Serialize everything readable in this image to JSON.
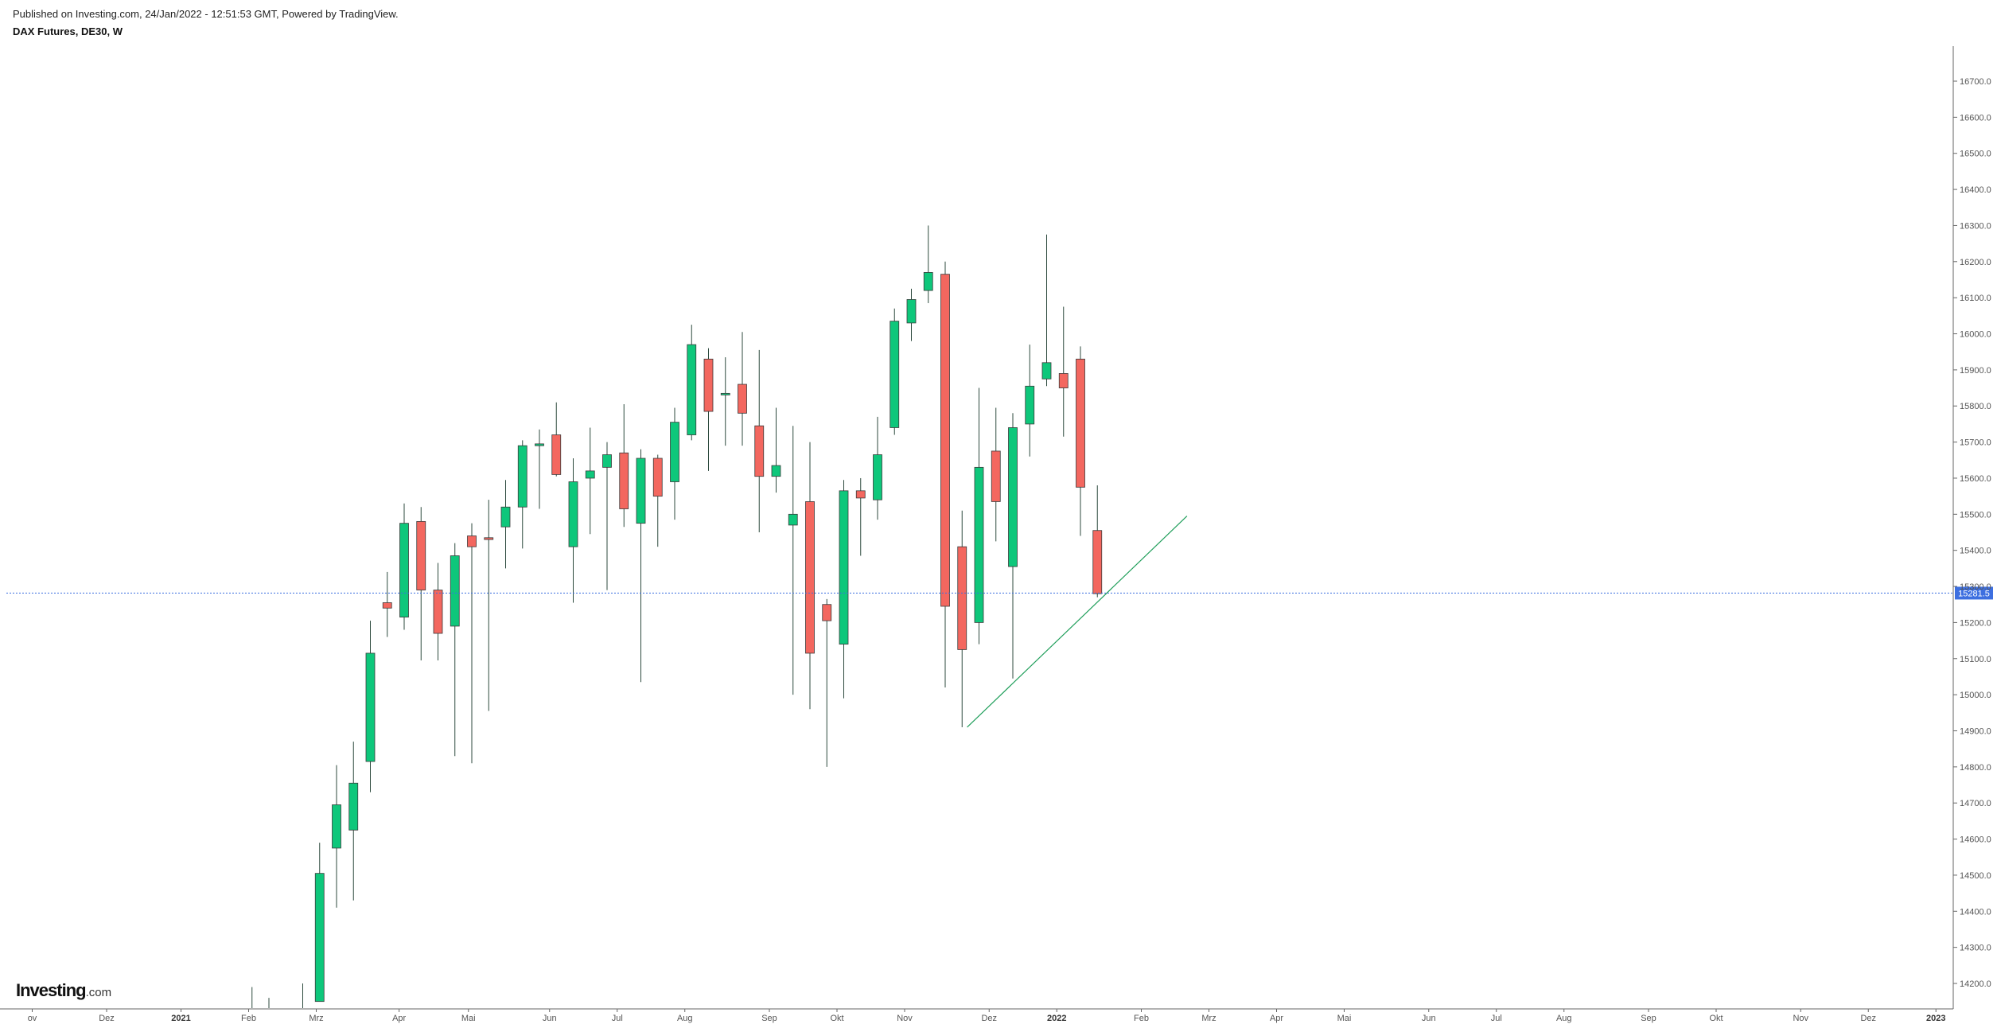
{
  "header": {
    "publisher": "Published on Investing.com, 24/Jan/2022 - 12:51:53 GMT, Powered by TradingView.",
    "title": "DAX Futures, DE30, W"
  },
  "logo": {
    "text": "Investing",
    "suffix": ".com"
  },
  "colors": {
    "up": "#0ec77b",
    "down": "#f3675f",
    "wick": "#2d4a3e",
    "price_line": "#3d6fe0",
    "trendline": "#1f9e5a",
    "axis": "#666666"
  },
  "chart_data": {
    "type": "candlestick",
    "ylim": [
      14150,
      16800
    ],
    "y_ticks": [
      14200,
      14300,
      14400,
      14500,
      14600,
      14700,
      14800,
      14900,
      15000,
      15100,
      15200,
      15300,
      15400,
      15500,
      15600,
      15700,
      15800,
      15900,
      16000,
      16100,
      16200,
      16300,
      16400,
      16500,
      16600,
      16700
    ],
    "y_tick_labels": [
      "14200.0",
      "14300.0",
      "14400.0",
      "14500.0",
      "14600.0",
      "14700.0",
      "14800.0",
      "14900.0",
      "15000.0",
      "15100.0",
      "15200.0",
      "15300.0",
      "15400.0",
      "15500.0",
      "15600.0",
      "15700.0",
      "15800.0",
      "15900.0",
      "16000.0",
      "16100.0",
      "16200.0",
      "16300.0",
      "16400.0",
      "16500.0",
      "16600.0",
      "16700.0"
    ],
    "x_ticks": [
      {
        "label": "ov",
        "bold": false,
        "week": -16.0
      },
      {
        "label": "Dez",
        "bold": false,
        "week": -11.6
      },
      {
        "label": "2021",
        "bold": true,
        "week": -7.2
      },
      {
        "label": "Feb",
        "bold": false,
        "week": -3.2
      },
      {
        "label": "Mrz",
        "bold": false,
        "week": 0.8
      },
      {
        "label": "Apr",
        "bold": false,
        "week": 5.7
      },
      {
        "label": "Mai",
        "bold": false,
        "week": 9.8
      },
      {
        "label": "Jun",
        "bold": false,
        "week": 14.6
      },
      {
        "label": "Jul",
        "bold": false,
        "week": 18.6
      },
      {
        "label": "Aug",
        "bold": false,
        "week": 22.6
      },
      {
        "label": "Sep",
        "bold": false,
        "week": 27.6
      },
      {
        "label": "Okt",
        "bold": false,
        "week": 31.6
      },
      {
        "label": "Nov",
        "bold": false,
        "week": 35.6
      },
      {
        "label": "Dez",
        "bold": false,
        "week": 40.6
      },
      {
        "label": "2022",
        "bold": true,
        "week": 44.6
      },
      {
        "label": "Feb",
        "bold": false,
        "week": 49.6
      },
      {
        "label": "Mrz",
        "bold": false,
        "week": 53.6
      },
      {
        "label": "Apr",
        "bold": false,
        "week": 57.6
      },
      {
        "label": "Mai",
        "bold": false,
        "week": 61.6
      },
      {
        "label": "Jun",
        "bold": false,
        "week": 66.6
      },
      {
        "label": "Jul",
        "bold": false,
        "week": 70.6
      },
      {
        "label": "Aug",
        "bold": false,
        "week": 74.6
      },
      {
        "label": "Sep",
        "bold": false,
        "week": 79.6
      },
      {
        "label": "Okt",
        "bold": false,
        "week": 83.6
      },
      {
        "label": "Nov",
        "bold": false,
        "week": 88.6
      },
      {
        "label": "Dez",
        "bold": false,
        "week": 92.6
      },
      {
        "label": "2023",
        "bold": true,
        "week": 96.6
      }
    ],
    "candles": [
      {
        "week": -3.0,
        "open": 14150,
        "high": 14190,
        "low": 14150,
        "close": 14150,
        "partial": true
      },
      {
        "week": -2.0,
        "open": 14150,
        "high": 14160,
        "low": 14150,
        "close": 14150,
        "partial": true
      },
      {
        "week": 0.0,
        "open": 14150,
        "high": 14200,
        "low": 14150,
        "close": 14150,
        "partial": true
      },
      {
        "week": 1.0,
        "open": 14150,
        "high": 14590,
        "low": 14150,
        "close": 14505
      },
      {
        "week": 2.0,
        "open": 14575,
        "high": 14805,
        "low": 14410,
        "close": 14695
      },
      {
        "week": 3.0,
        "open": 14625,
        "high": 14870,
        "low": 14430,
        "close": 14755
      },
      {
        "week": 4.0,
        "open": 14815,
        "high": 15205,
        "low": 14730,
        "close": 15115
      },
      {
        "week": 5.0,
        "open": 15255,
        "high": 15340,
        "low": 15160,
        "close": 15240
      },
      {
        "week": 6.0,
        "open": 15215,
        "high": 15530,
        "low": 15180,
        "close": 15475
      },
      {
        "week": 7.0,
        "open": 15480,
        "high": 15520,
        "low": 15095,
        "close": 15290
      },
      {
        "week": 8.0,
        "open": 15290,
        "high": 15365,
        "low": 15095,
        "close": 15170
      },
      {
        "week": 9.0,
        "open": 15190,
        "high": 15420,
        "low": 14830,
        "close": 15385
      },
      {
        "week": 10.0,
        "open": 15440,
        "high": 15475,
        "low": 14810,
        "close": 15410
      },
      {
        "week": 11.0,
        "open": 15435,
        "high": 15540,
        "low": 14955,
        "close": 15430
      },
      {
        "week": 12.0,
        "open": 15465,
        "high": 15595,
        "low": 15350,
        "close": 15520
      },
      {
        "week": 13.0,
        "open": 15520,
        "high": 15705,
        "low": 15405,
        "close": 15690
      },
      {
        "week": 14.0,
        "open": 15690,
        "high": 15735,
        "low": 15515,
        "close": 15695
      },
      {
        "week": 15.0,
        "open": 15720,
        "high": 15810,
        "low": 15605,
        "close": 15610
      },
      {
        "week": 16.0,
        "open": 15410,
        "high": 15655,
        "low": 15255,
        "close": 15590
      },
      {
        "week": 17.0,
        "open": 15600,
        "high": 15740,
        "low": 15445,
        "close": 15620
      },
      {
        "week": 18.0,
        "open": 15630,
        "high": 15700,
        "low": 15290,
        "close": 15665
      },
      {
        "week": 19.0,
        "open": 15670,
        "high": 15805,
        "low": 15465,
        "close": 15515
      },
      {
        "week": 20.0,
        "open": 15475,
        "high": 15680,
        "low": 15035,
        "close": 15655
      },
      {
        "week": 21.0,
        "open": 15655,
        "high": 15665,
        "low": 15410,
        "close": 15550
      },
      {
        "week": 22.0,
        "open": 15590,
        "high": 15795,
        "low": 15485,
        "close": 15755
      },
      {
        "week": 23.0,
        "open": 15720,
        "high": 16025,
        "low": 15705,
        "close": 15970
      },
      {
        "week": 24.0,
        "open": 15930,
        "high": 15960,
        "low": 15620,
        "close": 15785
      },
      {
        "week": 25.0,
        "open": 15835,
        "high": 15935,
        "low": 15690,
        "close": 15835
      },
      {
        "week": 26.0,
        "open": 15860,
        "high": 16005,
        "low": 15690,
        "close": 15780
      },
      {
        "week": 27.0,
        "open": 15745,
        "high": 15955,
        "low": 15450,
        "close": 15605
      },
      {
        "week": 28.0,
        "open": 15605,
        "high": 15795,
        "low": 15560,
        "close": 15635
      },
      {
        "week": 29.0,
        "open": 15470,
        "high": 15745,
        "low": 15000,
        "close": 15500
      },
      {
        "week": 30.0,
        "open": 15535,
        "high": 15700,
        "low": 14960,
        "close": 15115
      },
      {
        "week": 31.0,
        "open": 15250,
        "high": 15265,
        "low": 14800,
        "close": 15205
      },
      {
        "week": 32.0,
        "open": 15140,
        "high": 15595,
        "low": 14990,
        "close": 15565
      },
      {
        "week": 33.0,
        "open": 15565,
        "high": 15600,
        "low": 15385,
        "close": 15545
      },
      {
        "week": 34.0,
        "open": 15540,
        "high": 15770,
        "low": 15485,
        "close": 15665
      },
      {
        "week": 35.0,
        "open": 15740,
        "high": 16070,
        "low": 15720,
        "close": 16035
      },
      {
        "week": 36.0,
        "open": 16030,
        "high": 16125,
        "low": 15980,
        "close": 16095
      },
      {
        "week": 37.0,
        "open": 16120,
        "high": 16300,
        "low": 16085,
        "close": 16170
      },
      {
        "week": 38.0,
        "open": 16165,
        "high": 16200,
        "low": 15020,
        "close": 15245
      },
      {
        "week": 39.0,
        "open": 15410,
        "high": 15510,
        "low": 14910,
        "close": 15125
      },
      {
        "week": 40.0,
        "open": 15200,
        "high": 15850,
        "low": 15140,
        "close": 15630
      },
      {
        "week": 41.0,
        "open": 15675,
        "high": 15795,
        "low": 15425,
        "close": 15535
      },
      {
        "week": 42.0,
        "open": 15355,
        "high": 15780,
        "low": 15045,
        "close": 15740
      },
      {
        "week": 43.0,
        "open": 15750,
        "high": 15970,
        "low": 15660,
        "close": 15855
      },
      {
        "week": 44.0,
        "open": 15875,
        "high": 16275,
        "low": 15855,
        "close": 15920
      },
      {
        "week": 45.0,
        "open": 15890,
        "high": 16075,
        "low": 15715,
        "close": 15850
      },
      {
        "week": 46.0,
        "open": 15930,
        "high": 15965,
        "low": 15440,
        "close": 15575
      },
      {
        "week": 47.0,
        "open": 15455,
        "high": 15580,
        "low": 15270,
        "close": 15280
      }
    ],
    "trendline": {
      "from": {
        "week": 39.3,
        "price": 14910
      },
      "to": {
        "week": 52.3,
        "price": 15495
      }
    },
    "last_price": 15281.5,
    "last_price_label": "15281.5"
  }
}
